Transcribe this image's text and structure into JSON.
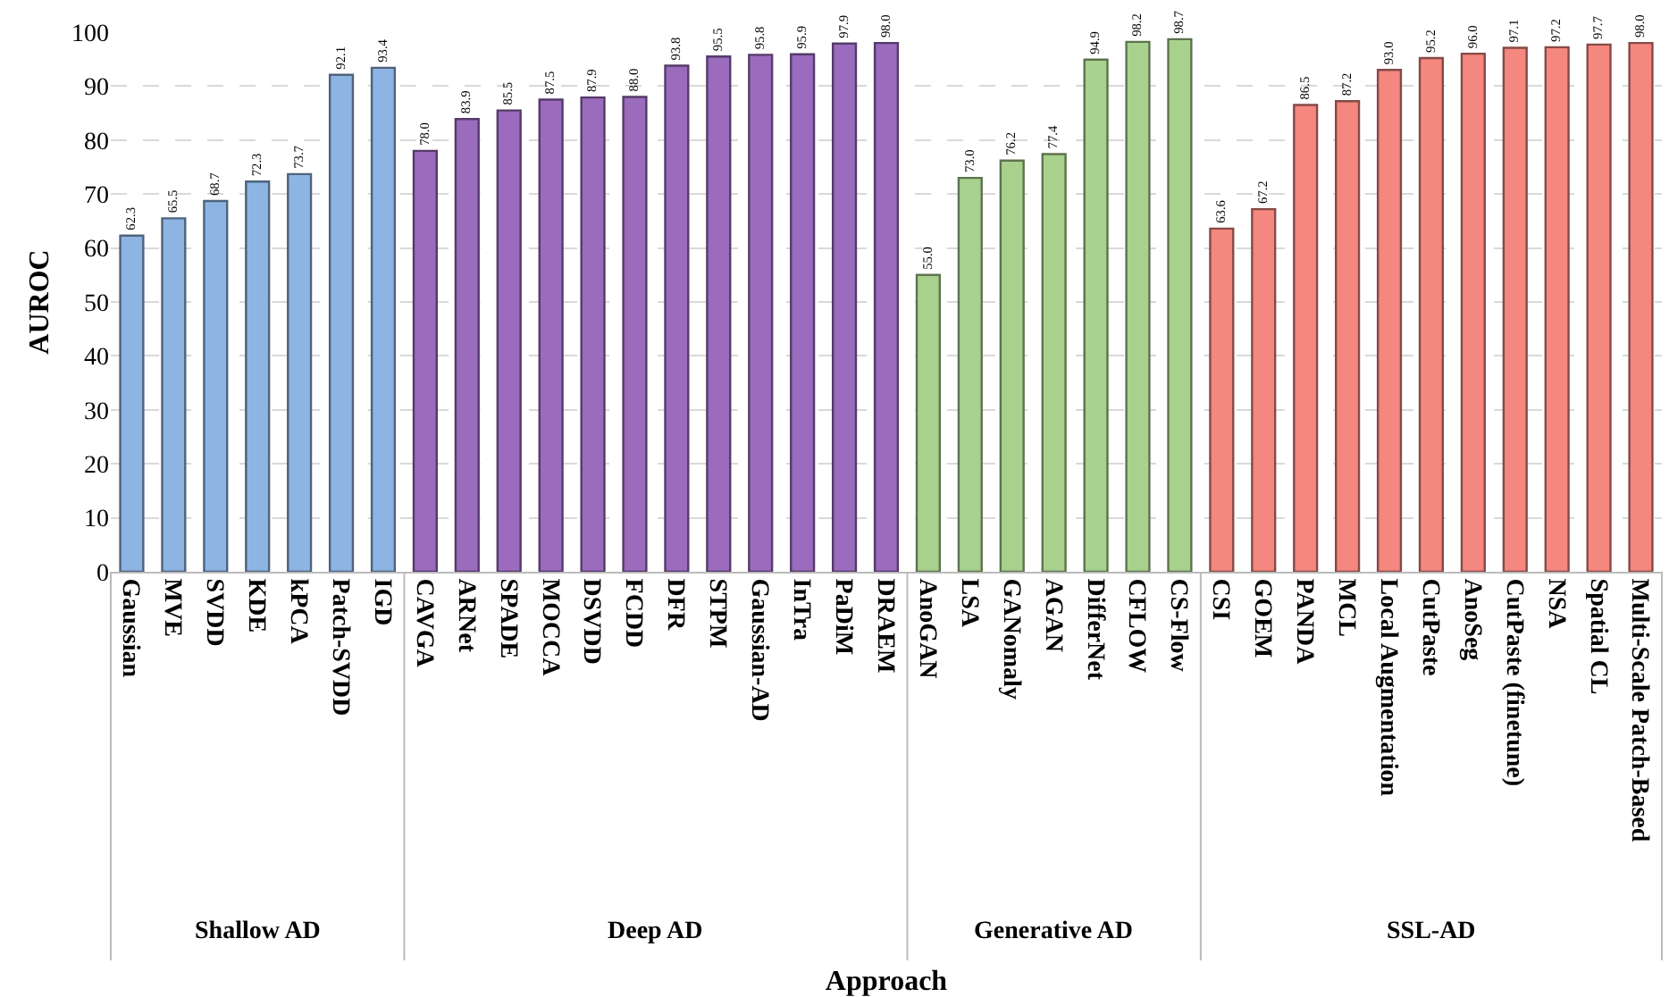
{
  "chart_data": {
    "type": "bar",
    "xlabel": "Approach",
    "ylabel": "AUROC",
    "categories": [
      "Gaussian",
      "MVE",
      "SVDD",
      "KDE",
      "kPCA",
      "Patch-SVDD",
      "IGD",
      "CAVGA",
      "ARNet",
      "SPADE",
      "MOCCA",
      "DSVDD",
      "FCDD",
      "DFR",
      "STPM",
      "Gaussian-AD",
      "InTra",
      "PaDiM",
      "DRAEM",
      "AnoGAN",
      "LSA",
      "GANomaly",
      "AGAN",
      "DifferNet",
      "CFLOW",
      "CS-Flow",
      "CSI",
      "GOEM",
      "PANDA",
      "MCL",
      "Local Augmentation",
      "CutPaste",
      "AnoSeg",
      "CutPaste (finetune)",
      "NSA",
      "Spatial CL",
      "Multi-Scale Patch-Based"
    ],
    "annotations": [
      "Shallow AD",
      "Deep AD",
      "Generative AD",
      "SSL-AD"
    ],
    "series": [
      {
        "color": "#8eb4e3",
        "values": [
          62.3,
          65.5,
          68.7,
          72.3,
          73.7,
          92.1,
          93.4,
          null,
          null,
          null,
          null,
          null,
          null,
          null,
          null,
          null,
          null,
          null,
          null,
          null,
          null,
          null,
          null,
          null,
          null,
          null,
          null,
          null,
          null,
          null,
          null,
          null,
          null,
          null,
          null,
          null,
          null
        ],
        "value_labels": [
          "62.3",
          "65.5",
          "68.7",
          "72.3",
          "73.7",
          "92.1",
          "93.4",
          null,
          null,
          null,
          null,
          null,
          null,
          null,
          null,
          null,
          null,
          null,
          null,
          null,
          null,
          null,
          null,
          null,
          null,
          null,
          null,
          null,
          null,
          null,
          null,
          null,
          null,
          null,
          null,
          null,
          null
        ]
      },
      {
        "color": "#9b6bbd",
        "values": [
          null,
          null,
          null,
          null,
          null,
          null,
          null,
          78.0,
          83.9,
          85.5,
          87.5,
          87.9,
          88.0,
          93.8,
          95.5,
          95.8,
          95.9,
          97.9,
          98.0,
          null,
          null,
          null,
          null,
          null,
          null,
          null,
          null,
          null,
          null,
          null,
          null,
          null,
          null,
          null,
          null,
          null,
          null
        ],
        "value_labels": [
          null,
          null,
          null,
          null,
          null,
          null,
          null,
          "78.0",
          "83.9",
          "85.5",
          "87.5",
          "87.9",
          "88.0",
          "93.8",
          "95.5",
          "95.8",
          "95.9",
          "97.9",
          "98.0",
          null,
          null,
          null,
          null,
          null,
          null,
          null,
          null,
          null,
          null,
          null,
          null,
          null,
          null,
          null,
          null,
          null,
          null
        ]
      },
      {
        "color": "#a9d18e",
        "values": [
          null,
          null,
          null,
          null,
          null,
          null,
          null,
          null,
          null,
          null,
          null,
          null,
          null,
          null,
          null,
          null,
          null,
          null,
          null,
          55.0,
          73.0,
          76.2,
          77.4,
          94.9,
          98.2,
          98.7,
          null,
          null,
          null,
          null,
          null,
          null,
          null,
          null,
          null,
          null,
          null
        ],
        "value_labels": [
          null,
          null,
          null,
          null,
          null,
          null,
          null,
          null,
          null,
          null,
          null,
          null,
          null,
          null,
          null,
          null,
          null,
          null,
          null,
          "55.0",
          "73.0",
          "76.2",
          "77.4",
          "94.9",
          "98.2",
          "98.7",
          null,
          null,
          null,
          null,
          null,
          null,
          null,
          null,
          null,
          null,
          null
        ]
      },
      {
        "color": "#f4877f",
        "values": [
          null,
          null,
          null,
          null,
          null,
          null,
          null,
          null,
          null,
          null,
          null,
          null,
          null,
          null,
          null,
          null,
          null,
          null,
          null,
          null,
          null,
          null,
          null,
          null,
          null,
          null,
          63.6,
          67.2,
          86.5,
          87.2,
          93.0,
          95.2,
          96.0,
          97.1,
          97.2,
          97.7,
          98.0
        ],
        "value_labels": [
          null,
          null,
          null,
          null,
          null,
          null,
          null,
          null,
          null,
          null,
          null,
          null,
          null,
          null,
          null,
          null,
          null,
          null,
          null,
          null,
          null,
          null,
          null,
          null,
          null,
          null,
          "63.6",
          "67.2",
          "86.5",
          "87.2",
          "93.0",
          "95.2",
          "96.0",
          "97.1",
          "97.2",
          "97.7",
          "98.0"
        ]
      }
    ],
    "ylim": [
      0,
      100
    ],
    "yticks": [
      0,
      10,
      20,
      30,
      40,
      50,
      60,
      70,
      80,
      90,
      100
    ],
    "grid": "y"
  }
}
